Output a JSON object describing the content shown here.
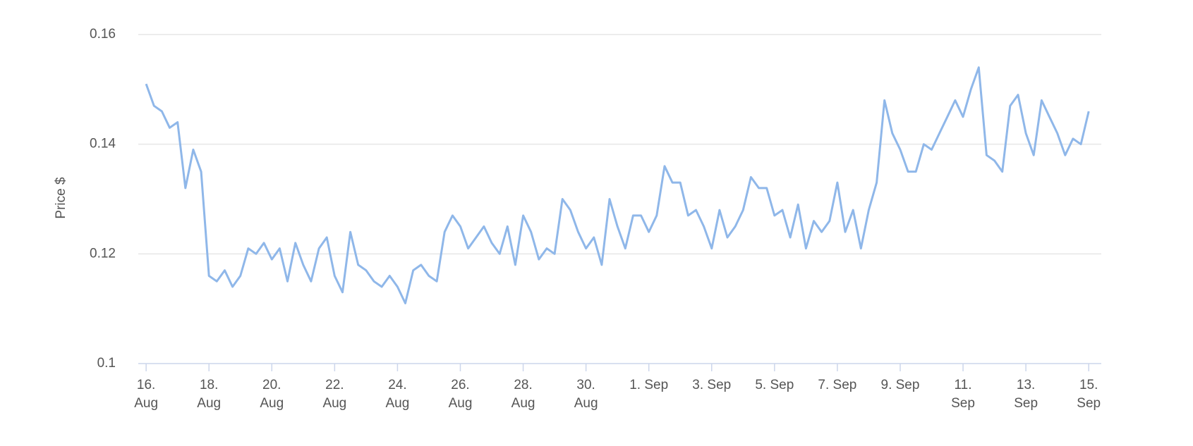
{
  "chart_data": {
    "type": "line",
    "y_label": "Price $",
    "color": "#8fb7e9",
    "x": [
      0,
      0.25,
      0.5,
      0.75,
      1,
      1.25,
      1.5,
      1.75,
      2,
      2.25,
      2.5,
      2.75,
      3,
      3.25,
      3.5,
      3.75,
      4,
      4.25,
      4.5,
      4.75,
      5,
      5.25,
      5.5,
      5.75,
      6,
      6.25,
      6.5,
      6.75,
      7,
      7.25,
      7.5,
      7.75,
      8,
      8.25,
      8.5,
      8.75,
      9,
      9.25,
      9.5,
      9.75,
      10,
      10.25,
      10.5,
      10.75,
      11,
      11.25,
      11.5,
      11.75,
      12,
      12.25,
      12.5,
      12.75,
      13,
      13.25,
      13.5,
      13.75,
      14,
      14.25,
      14.5,
      14.75,
      15,
      15.25,
      15.5,
      15.75,
      16,
      16.25,
      16.5,
      16.75,
      17,
      17.25,
      17.5,
      17.75,
      18,
      18.25,
      18.5,
      18.75,
      19,
      19.25,
      19.5,
      19.75,
      20,
      20.25,
      20.5,
      20.75,
      21,
      21.25,
      21.5,
      21.75,
      22,
      22.25,
      22.5,
      22.75,
      23,
      23.25,
      23.5,
      23.75,
      24,
      24.25,
      24.5,
      24.75,
      25,
      25.25,
      25.5,
      25.75,
      26,
      26.25,
      26.5,
      26.75,
      27,
      27.25,
      27.5,
      27.75,
      28,
      28.25,
      28.5,
      28.75,
      29,
      29.25,
      29.5,
      29.75,
      30
    ],
    "values": [
      0.151,
      0.147,
      0.146,
      0.143,
      0.144,
      0.132,
      0.139,
      0.135,
      0.116,
      0.115,
      0.117,
      0.114,
      0.116,
      0.121,
      0.12,
      0.122,
      0.119,
      0.121,
      0.115,
      0.122,
      0.118,
      0.115,
      0.121,
      0.123,
      0.116,
      0.113,
      0.124,
      0.118,
      0.117,
      0.115,
      0.114,
      0.116,
      0.114,
      0.111,
      0.117,
      0.118,
      0.116,
      0.115,
      0.124,
      0.127,
      0.125,
      0.121,
      0.123,
      0.125,
      0.122,
      0.12,
      0.125,
      0.118,
      0.127,
      0.124,
      0.119,
      0.121,
      0.12,
      0.13,
      0.128,
      0.124,
      0.121,
      0.123,
      0.118,
      0.13,
      0.125,
      0.121,
      0.127,
      0.127,
      0.124,
      0.127,
      0.136,
      0.133,
      0.133,
      0.127,
      0.128,
      0.125,
      0.121,
      0.128,
      0.123,
      0.125,
      0.128,
      0.134,
      0.132,
      0.132,
      0.127,
      0.128,
      0.123,
      0.129,
      0.121,
      0.126,
      0.124,
      0.126,
      0.133,
      0.124,
      0.128,
      0.121,
      0.128,
      0.133,
      0.148,
      0.142,
      0.139,
      0.135,
      0.135,
      0.14,
      0.139,
      0.142,
      0.145,
      0.148,
      0.145,
      0.15,
      0.154,
      0.138,
      0.137,
      0.135,
      0.147,
      0.149,
      0.142,
      0.138,
      0.148,
      0.145,
      0.142,
      0.138,
      0.141,
      0.14,
      0.146
    ],
    "xlim": [
      -0.25,
      30.4
    ],
    "xticks": [
      {
        "value": 0,
        "label": "16. Aug"
      },
      {
        "value": 2,
        "label": "18. Aug"
      },
      {
        "value": 4,
        "label": "20. Aug"
      },
      {
        "value": 6,
        "label": "22. Aug"
      },
      {
        "value": 8,
        "label": "24. Aug"
      },
      {
        "value": 10,
        "label": "26. Aug"
      },
      {
        "value": 12,
        "label": "28. Aug"
      },
      {
        "value": 14,
        "label": "30. Aug"
      },
      {
        "value": 16,
        "label": "1. Sep"
      },
      {
        "value": 18,
        "label": "3. Sep"
      },
      {
        "value": 20,
        "label": "5. Sep"
      },
      {
        "value": 22,
        "label": "7. Sep"
      },
      {
        "value": 24,
        "label": "9. Sep"
      },
      {
        "value": 26,
        "label": "11. Sep"
      },
      {
        "value": 28,
        "label": "13. Sep"
      },
      {
        "value": 30,
        "label": "15. Sep"
      }
    ],
    "ylim": [
      0.1,
      0.16
    ],
    "yticks": [
      {
        "value": 0.1,
        "label": "0.1"
      },
      0.12,
      0.14,
      0.16
    ],
    "grid": true
  }
}
